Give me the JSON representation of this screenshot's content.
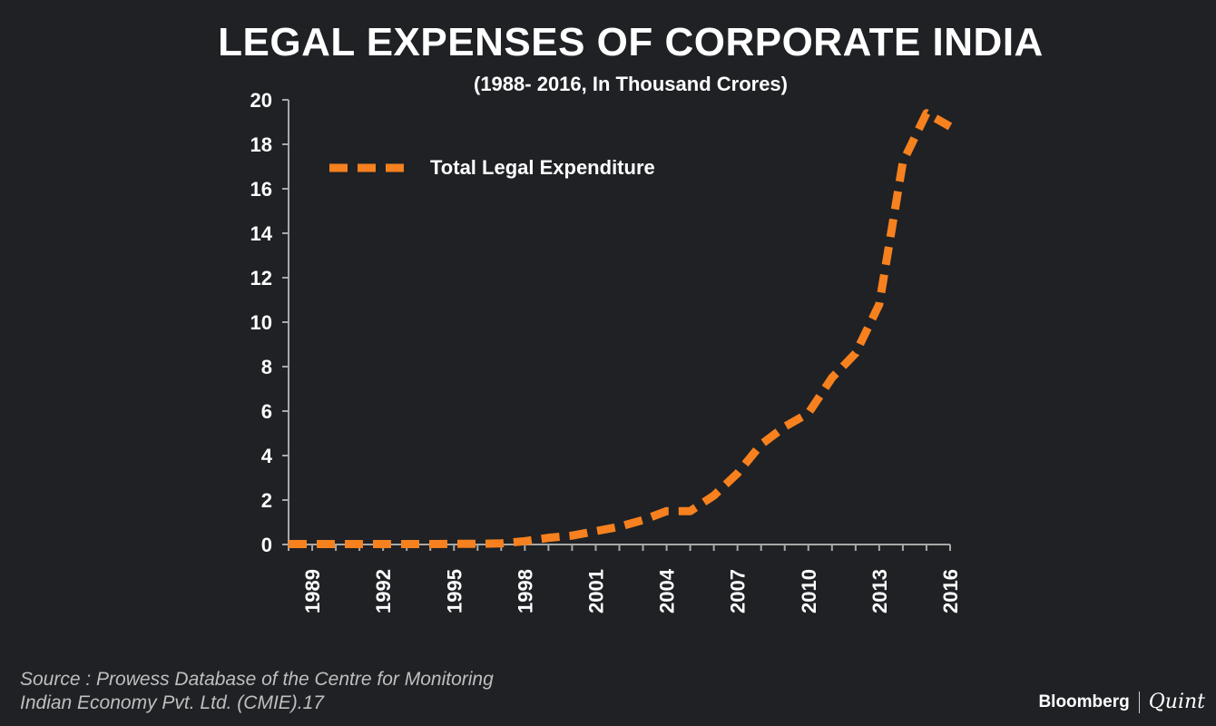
{
  "chart_data": {
    "type": "line",
    "title": "LEGAL EXPENSES OF CORPORATE INDIA",
    "subtitle": "(1988- 2016, In Thousand Crores)",
    "xlabel": "",
    "ylabel": "",
    "ylim": [
      0,
      20
    ],
    "yticks": [
      0,
      2,
      4,
      6,
      8,
      10,
      12,
      14,
      16,
      18,
      20
    ],
    "xlim": [
      1988,
      2016
    ],
    "xtick_labels": [
      "1989",
      "1992",
      "1995",
      "1998",
      "2001",
      "2004",
      "2007",
      "2010",
      "2013",
      "2016"
    ],
    "legend_position": "top-left",
    "series": [
      {
        "name": "Total Legal Expenditure",
        "color": "#f7811e",
        "style": "dashed",
        "x": [
          1988,
          1989,
          1990,
          1991,
          1992,
          1993,
          1994,
          1995,
          1996,
          1997,
          1998,
          1999,
          2000,
          2001,
          2002,
          2003,
          2004,
          2005,
          2006,
          2007,
          2008,
          2009,
          2010,
          2011,
          2012,
          2013,
          2014,
          2015,
          2016
        ],
        "values": [
          0.02,
          0.02,
          0.02,
          0.02,
          0.02,
          0.02,
          0.02,
          0.03,
          0.03,
          0.05,
          0.15,
          0.3,
          0.4,
          0.6,
          0.8,
          1.1,
          1.5,
          1.5,
          2.2,
          3.2,
          4.5,
          5.3,
          5.9,
          7.5,
          8.6,
          10.8,
          17.2,
          19.4,
          18.8
        ]
      }
    ]
  },
  "source": {
    "line1": "Source : Prowess Database of the Centre for Monitoring",
    "line2": "Indian Economy Pvt. Ltd. (CMIE).17"
  },
  "branding": {
    "part1": "Bloomberg",
    "part2": "Quint"
  }
}
